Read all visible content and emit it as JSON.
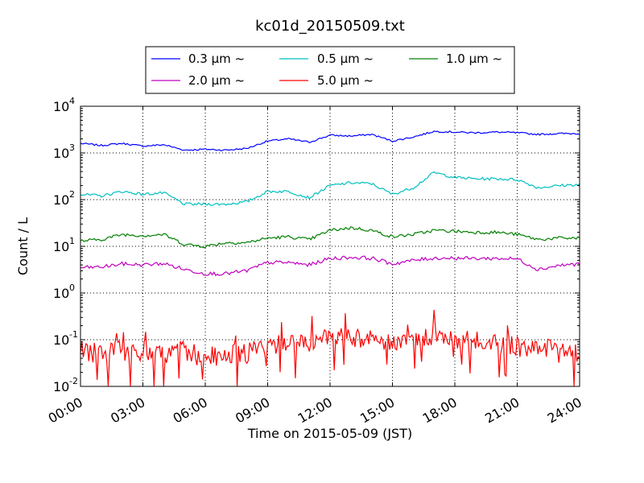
{
  "chart_data": {
    "type": "line",
    "title": "kc01d_20150509.txt",
    "xlabel": "Time on 2015-05-09 (JST)",
    "ylabel": "Count / L",
    "yscale": "log",
    "ylim": [
      0.01,
      10000
    ],
    "xlim": [
      "00:00",
      "24:00"
    ],
    "grid": true,
    "legend": {
      "position": "top",
      "columns": 3
    },
    "x_ticks": [
      "00:00",
      "03:00",
      "06:00",
      "09:00",
      "12:00",
      "15:00",
      "18:00",
      "21:00",
      "24:00"
    ],
    "y_ticks": [
      {
        "base": "10",
        "exp": "-2"
      },
      {
        "base": "10",
        "exp": "-1"
      },
      {
        "base": "10",
        "exp": "0"
      },
      {
        "base": "10",
        "exp": "1"
      },
      {
        "base": "10",
        "exp": "2"
      },
      {
        "base": "10",
        "exp": "3"
      },
      {
        "base": "10",
        "exp": "4"
      }
    ],
    "x_hours": [
      0,
      1,
      2,
      3,
      4,
      5,
      6,
      7,
      8,
      9,
      10,
      11,
      12,
      13,
      14,
      15,
      16,
      17,
      18,
      19,
      20,
      21,
      22,
      23,
      24
    ],
    "series": [
      {
        "name": "0.3 μm ~",
        "color": "#0000ff",
        "values": [
          1600,
          1450,
          1600,
          1400,
          1500,
          1150,
          1200,
          1150,
          1250,
          1800,
          2000,
          1700,
          2400,
          2300,
          2500,
          1800,
          2200,
          2900,
          2800,
          2700,
          2800,
          2700,
          2500,
          2600,
          2600
        ]
      },
      {
        "name": "0.5 μm ~",
        "color": "#00bfbf",
        "values": [
          130,
          120,
          150,
          130,
          140,
          80,
          80,
          80,
          90,
          150,
          150,
          110,
          200,
          230,
          220,
          130,
          180,
          380,
          300,
          280,
          280,
          270,
          180,
          200,
          210
        ]
      },
      {
        "name": "1.0 μm ~",
        "color": "#008000",
        "values": [
          13,
          14,
          18,
          17,
          18,
          11,
          10,
          12,
          12,
          15,
          16,
          14,
          22,
          25,
          22,
          16,
          18,
          22,
          21,
          20,
          20,
          18,
          14,
          15,
          15
        ]
      },
      {
        "name": "2.0 μm ~",
        "color": "#bf00bf",
        "values": [
          3.5,
          3.6,
          4.2,
          4.0,
          4.3,
          3.2,
          2.6,
          2.6,
          3.0,
          4.5,
          4.5,
          4.0,
          5.5,
          5.8,
          5.6,
          4.2,
          5.0,
          5.6,
          5.6,
          5.5,
          5.5,
          5.4,
          3.2,
          3.9,
          4.2
        ]
      },
      {
        "name": "5.0 μm ~",
        "color": "#ff0000",
        "values": [
          0.06,
          0.05,
          0.06,
          0.04,
          0.05,
          0.06,
          0.04,
          0.05,
          0.05,
          0.07,
          0.1,
          0.08,
          0.12,
          0.12,
          0.1,
          0.09,
          0.1,
          0.12,
          0.1,
          0.09,
          0.08,
          0.07,
          0.06,
          0.07,
          0.05
        ]
      }
    ]
  }
}
